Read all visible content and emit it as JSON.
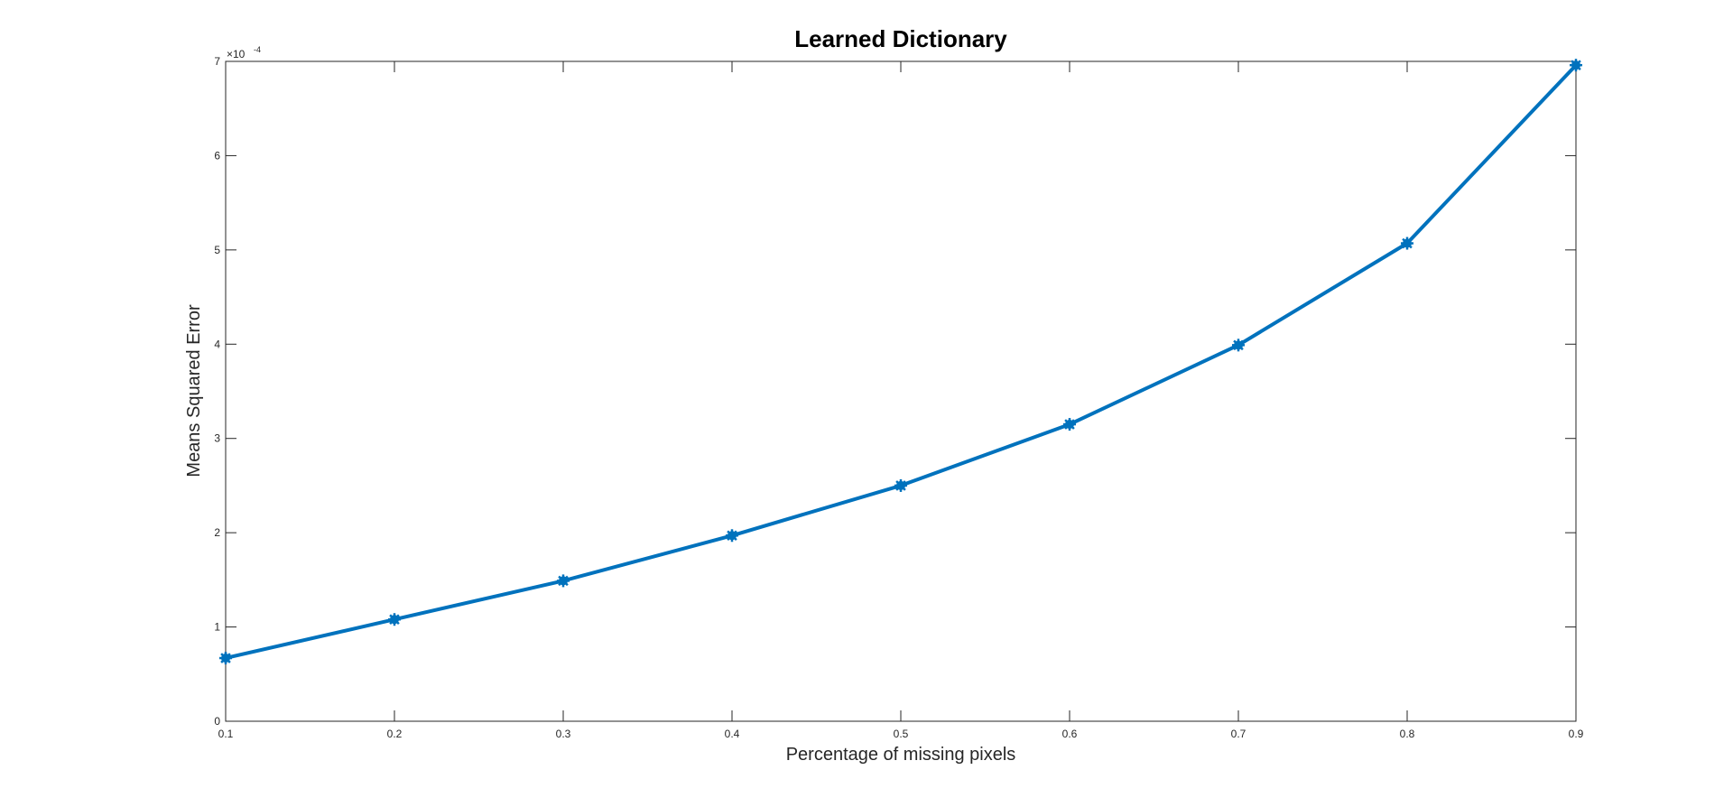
{
  "chart_data": {
    "type": "line",
    "title": "Learned Dictionary",
    "xlabel": "Percentage of missing pixels",
    "ylabel": "Means Squared Error",
    "x": [
      0.1,
      0.2,
      0.3,
      0.4,
      0.5,
      0.6,
      0.7,
      0.8,
      0.9
    ],
    "series": [
      {
        "values": [
          0.67,
          1.08,
          1.49,
          1.97,
          2.5,
          3.15,
          3.99,
          5.07,
          6.96
        ]
      }
    ],
    "xlim": [
      0.1,
      0.9
    ],
    "ylim": [
      0,
      7
    ],
    "xticks": [
      "0.1",
      "0.2",
      "0.3",
      "0.4",
      "0.5",
      "0.6",
      "0.7",
      "0.8",
      "0.9"
    ],
    "yticks": [
      "0",
      "1",
      "2",
      "3",
      "4",
      "5",
      "6",
      "7"
    ],
    "y_exponent_base": "×10",
    "y_exponent": "-4",
    "grid": false,
    "line_color": "#0072BD",
    "marker": "star-filled"
  }
}
